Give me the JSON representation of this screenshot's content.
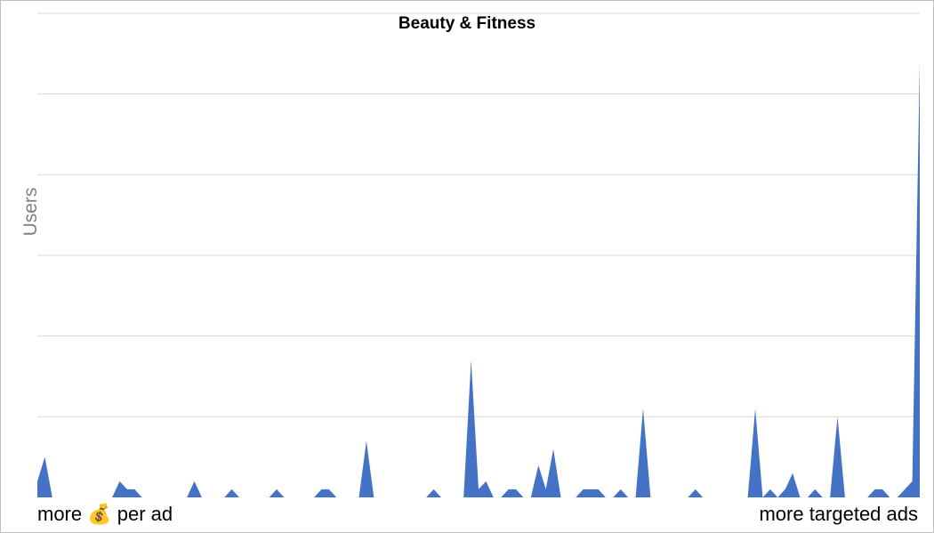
{
  "chart_data": {
    "type": "area",
    "title": "Beauty & Fitness",
    "ylabel": "Users",
    "xlabel": "",
    "x_tick_labels": {
      "left": "more 💰 per ad",
      "right": "more targeted ads"
    },
    "grid": true,
    "legend": "none",
    "ylim": [
      0,
      6
    ],
    "colors": {
      "series": "#4472C4",
      "grid": "#d9d9d9"
    },
    "series": [
      {
        "values": [
          0.2,
          0.5,
          0,
          0,
          0,
          0,
          0,
          0,
          0,
          0,
          0,
          0.2,
          0.1,
          0.1,
          0,
          0,
          0,
          0,
          0,
          0,
          0,
          0.2,
          0,
          0,
          0,
          0,
          0.1,
          0,
          0,
          0,
          0,
          0,
          0.1,
          0,
          0,
          0,
          0,
          0,
          0.1,
          0.1,
          0,
          0,
          0,
          0,
          0.7,
          0,
          0,
          0,
          0,
          0,
          0,
          0,
          0,
          0.1,
          0,
          0,
          0,
          0,
          1.7,
          0.1,
          0.2,
          0,
          0,
          0.1,
          0.1,
          0,
          0,
          0.4,
          0.1,
          0.6,
          0,
          0,
          0,
          0.1,
          0.1,
          0.1,
          0,
          0,
          0.1,
          0,
          0,
          1.1,
          0,
          0,
          0,
          0,
          0,
          0,
          0.1,
          0,
          0,
          0,
          0,
          0,
          0,
          0,
          1.1,
          0,
          0.1,
          0,
          0.1,
          0.3,
          0,
          0,
          0.1,
          0,
          0,
          1.0,
          0,
          0,
          0,
          0,
          0.1,
          0.1,
          0,
          0,
          0.1,
          0.2,
          5.4
        ]
      }
    ]
  }
}
